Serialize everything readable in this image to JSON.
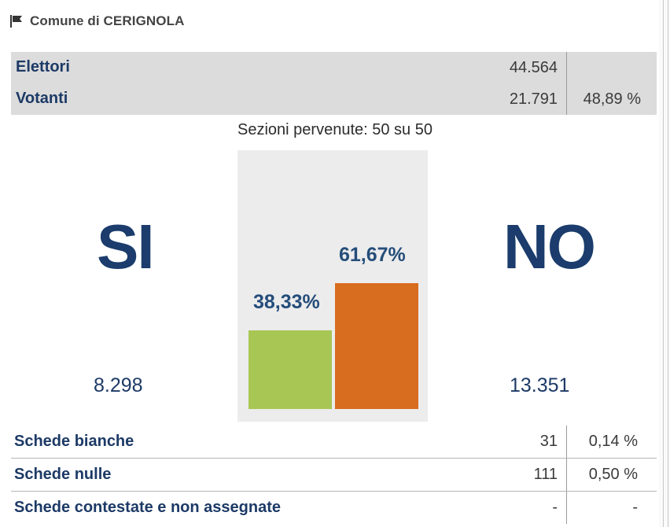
{
  "header": {
    "title": "Comune di CERIGNOLA",
    "icon": "flag-icon"
  },
  "stats": {
    "elettori": {
      "label": "Elettori",
      "value": "44.564"
    },
    "votanti": {
      "label": "Votanti",
      "value": "21.791",
      "percent": "48,89 %"
    }
  },
  "sezioni": "Sezioni pervenute: 50 su 50",
  "si": {
    "word": "SI",
    "votes": "8.298",
    "percent_label": "38,33%",
    "percent": 38.33,
    "color": "#a8c653"
  },
  "no": {
    "word": "NO",
    "votes": "13.351",
    "percent_label": "61,67%",
    "percent": 61.67,
    "color": "#d86c1f"
  },
  "bottom": [
    {
      "label": "Schede bianche",
      "value": "31",
      "percent": "0,14 %"
    },
    {
      "label": "Schede nulle",
      "value": "111",
      "percent": "0,50 %"
    },
    {
      "label": "Schede contestate e non assegnate",
      "value": "-",
      "percent": "-"
    }
  ]
}
